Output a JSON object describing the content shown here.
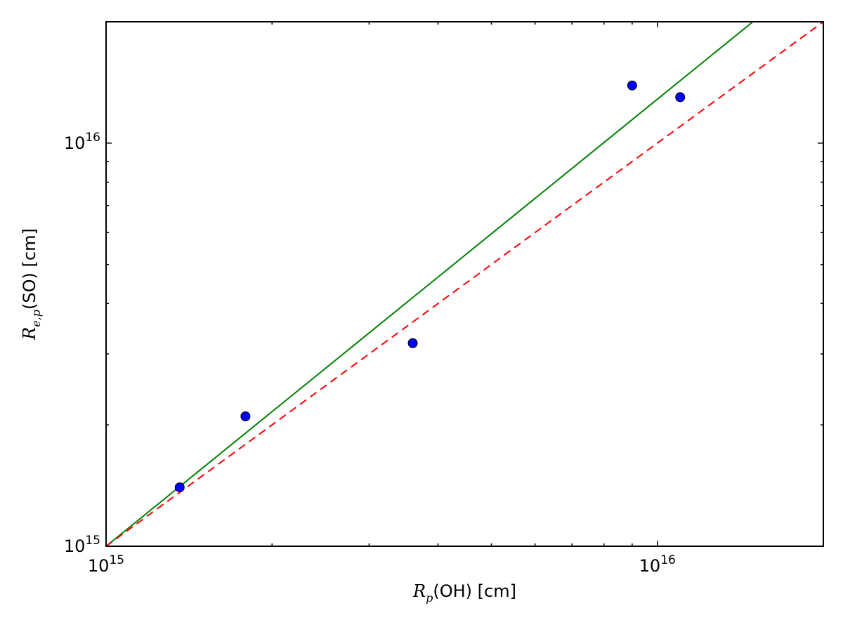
{
  "chart_data": {
    "type": "scatter",
    "xlabel": "R_p(OH) [cm]",
    "ylabel": "R_{e,p}(SO) [cm]",
    "xscale": "log",
    "yscale": "log",
    "minor_ticks": true,
    "xlim": [
      1000000000000000.0,
      2e+16
    ],
    "ylim": [
      1000000000000000.0,
      2e+16
    ],
    "xticks": [
      {
        "value": 1000000000000000.0,
        "label": "10^15"
      },
      {
        "value": 1e+16,
        "label": "10^16"
      }
    ],
    "yticks": [
      {
        "value": 1000000000000000.0,
        "label": "10^15"
      },
      {
        "value": 1e+16,
        "label": "10^16"
      }
    ],
    "series": [
      {
        "marker": "o",
        "linestyle": "none",
        "color": "#0000ff",
        "x": [
          1360000000000000.0,
          1790000000000000.0,
          3600000000000000.0,
          9000000000000000.0,
          1.1e+16
        ],
        "values": [
          1400000000000000.0,
          2100000000000000.0,
          3190000000000000.0,
          1.39e+16,
          1.3e+16
        ]
      },
      {
        "marker": "none",
        "linestyle": "solid",
        "color": "#008000",
        "x": [
          1000000000000000.0,
          1.49e+16
        ],
        "values": [
          1000000000000000.0,
          2e+16
        ]
      },
      {
        "marker": "none",
        "linestyle": "dashed",
        "color": "#ff0000",
        "x": [
          1000000000000000.0,
          2e+16
        ],
        "values": [
          1000000000000000.0,
          2e+16
        ]
      }
    ]
  }
}
